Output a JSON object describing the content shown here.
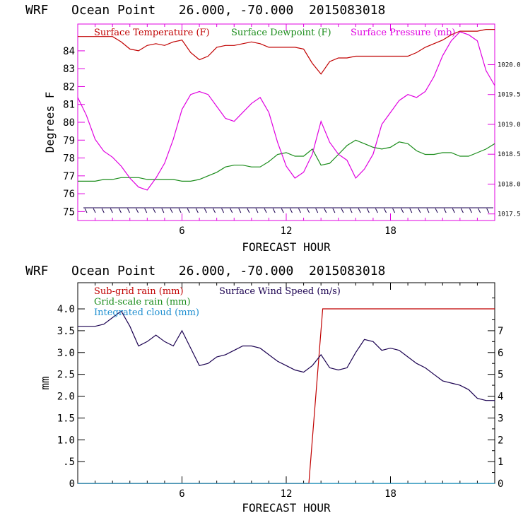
{
  "colors": {
    "red": "#c00000",
    "green": "#1a8c1a",
    "magenta": "#e000e0",
    "navy": "#1a0050",
    "blue": "#1f8fd0",
    "frame_top": "#e000e0",
    "frame_bottom": "#000000"
  },
  "chart_data": [
    {
      "type": "line",
      "title": "WRF   Ocean Point   26.000, -70.000  2015083018",
      "xlabel": "FORECAST HOUR",
      "ylabel": "Degrees F",
      "xlim": [
        0,
        24
      ],
      "ylim": [
        74.5,
        85.5
      ],
      "xticks": [
        6,
        12,
        18
      ],
      "yticks": [
        75,
        76,
        77,
        78,
        79,
        80,
        81,
        82,
        83,
        84
      ],
      "right_axis": {
        "label": "Surface Pressure (mb)",
        "ticks": [
          "1017.5",
          "1018.0",
          "1018.5",
          "1019.0",
          "1019.5",
          "1020.0"
        ],
        "tick_values": [
          1017.5,
          1018.0,
          1018.5,
          1019.0,
          1019.5,
          1020.0
        ],
        "ylim": [
          1017.39,
          1020.68
        ]
      },
      "legend": [
        "Surface Temperature (F)",
        "Surface Dewpoint (F)",
        "Surface Pressure (mb)"
      ],
      "series": [
        {
          "name": "Surface Temperature (F)",
          "axis": "left",
          "x": [
            0,
            0.5,
            1,
            1.5,
            2,
            2.5,
            3,
            3.5,
            4,
            4.5,
            5,
            5.5,
            6,
            6.5,
            7,
            7.5,
            8,
            8.5,
            9,
            9.5,
            10,
            10.5,
            11,
            11.5,
            12,
            12.5,
            13,
            13.5,
            14,
            14.5,
            15,
            15.5,
            16,
            16.5,
            17,
            17.5,
            18,
            18.5,
            19,
            19.5,
            20,
            20.5,
            21,
            21.5,
            22,
            22.5,
            23,
            23.5,
            24
          ],
          "values": [
            84.8,
            84.8,
            84.8,
            84.8,
            84.8,
            84.5,
            84.1,
            84.0,
            84.3,
            84.4,
            84.3,
            84.5,
            84.6,
            83.9,
            83.5,
            83.7,
            84.2,
            84.3,
            84.3,
            84.4,
            84.5,
            84.4,
            84.2,
            84.2,
            84.2,
            84.2,
            84.1,
            83.3,
            82.7,
            83.4,
            83.6,
            83.6,
            83.7,
            83.7,
            83.7,
            83.7,
            83.7,
            83.7,
            83.7,
            83.9,
            84.2,
            84.4,
            84.6,
            84.9,
            85.1,
            85.1,
            85.1,
            85.2,
            85.2
          ]
        },
        {
          "name": "Surface Dewpoint (F)",
          "axis": "left",
          "x": [
            0,
            0.5,
            1,
            1.5,
            2,
            2.5,
            3,
            3.5,
            4,
            4.5,
            5,
            5.5,
            6,
            6.5,
            7,
            7.5,
            8,
            8.5,
            9,
            9.5,
            10,
            10.5,
            11,
            11.5,
            12,
            12.5,
            13,
            13.5,
            14,
            14.5,
            15,
            15.5,
            16,
            16.5,
            17,
            17.5,
            18,
            18.5,
            19,
            19.5,
            20,
            20.5,
            21,
            21.5,
            22,
            22.5,
            23,
            23.5,
            24
          ],
          "values": [
            76.7,
            76.7,
            76.7,
            76.8,
            76.8,
            76.9,
            76.9,
            76.9,
            76.8,
            76.8,
            76.8,
            76.8,
            76.7,
            76.7,
            76.8,
            77.0,
            77.2,
            77.5,
            77.6,
            77.6,
            77.5,
            77.5,
            77.8,
            78.2,
            78.3,
            78.1,
            78.1,
            78.5,
            77.6,
            77.7,
            78.2,
            78.7,
            79.0,
            78.8,
            78.6,
            78.5,
            78.6,
            78.9,
            78.8,
            78.4,
            78.2,
            78.2,
            78.3,
            78.3,
            78.1,
            78.1,
            78.3,
            78.5,
            78.8
          ]
        },
        {
          "name": "Surface Pressure (mb)",
          "axis": "right",
          "x": [
            0,
            0.5,
            1,
            1.5,
            2,
            2.5,
            3,
            3.5,
            4,
            4.5,
            5,
            5.5,
            6,
            6.5,
            7,
            7.5,
            8,
            8.5,
            9,
            9.5,
            10,
            10.5,
            11,
            11.5,
            12,
            12.5,
            13,
            13.5,
            14,
            14.5,
            15,
            15.5,
            16,
            16.5,
            17,
            17.5,
            18,
            18.5,
            19,
            19.5,
            20,
            20.5,
            21,
            21.5,
            22,
            22.5,
            23,
            23.5,
            24
          ],
          "values": [
            1019.45,
            1019.15,
            1018.75,
            1018.55,
            1018.45,
            1018.3,
            1018.1,
            1017.95,
            1017.9,
            1018.1,
            1018.35,
            1018.75,
            1019.25,
            1019.5,
            1019.55,
            1019.5,
            1019.3,
            1019.1,
            1019.05,
            1019.2,
            1019.35,
            1019.45,
            1019.2,
            1018.7,
            1018.3,
            1018.1,
            1018.2,
            1018.5,
            1019.05,
            1018.7,
            1018.5,
            1018.4,
            1018.1,
            1018.25,
            1018.5,
            1019.0,
            1019.2,
            1019.4,
            1019.5,
            1019.45,
            1019.55,
            1019.8,
            1020.15,
            1020.4,
            1020.55,
            1020.5,
            1020.4,
            1019.9,
            1019.65
          ]
        }
      ]
    },
    {
      "type": "line",
      "title": "WRF   Ocean Point   26.000, -70.000  2015083018",
      "xlabel": "FORECAST HOUR",
      "ylabel": "mm",
      "xlim": [
        0,
        24
      ],
      "ylim": [
        0,
        4.6
      ],
      "xticks": [
        6,
        12,
        18
      ],
      "yticks": [
        0,
        0.5,
        1.0,
        1.5,
        2.0,
        2.5,
        3.0,
        3.5,
        4.0
      ],
      "ytick_labels": [
        "0",
        ".5",
        "1.0",
        "1.5",
        "2.0",
        "2.5",
        "3.0",
        "3.5",
        "4.0"
      ],
      "right_axis": {
        "label": "Surface Wind Speed (m/s)",
        "ticks": [
          "0",
          "1",
          "2",
          "3",
          "4",
          "5",
          "6",
          "7"
        ],
        "tick_values": [
          0,
          1,
          2,
          3,
          4,
          5,
          6,
          7
        ],
        "ylim": [
          0,
          9.2
        ]
      },
      "legend": [
        "Sub-grid rain (mm)",
        "Grid-scale rain (mm)",
        "Integrated cloud (mm)",
        "Surface Wind Speed (m/s)"
      ],
      "series": [
        {
          "name": "Sub-grid rain (mm)",
          "axis": "left",
          "x": [
            0,
            13.3,
            14.1,
            24
          ],
          "values": [
            0,
            0,
            4.0,
            4.0
          ]
        },
        {
          "name": "Grid-scale rain (mm)",
          "axis": "left",
          "x": [
            0,
            24
          ],
          "values": [
            0,
            0
          ]
        },
        {
          "name": "Integrated cloud (mm)",
          "axis": "left",
          "x": [
            0,
            24
          ],
          "values": [
            0,
            0
          ]
        },
        {
          "name": "Surface Wind Speed (m/s)",
          "axis": "right",
          "x": [
            0,
            0.5,
            1,
            1.5,
            2,
            2.5,
            3,
            3.5,
            4,
            4.5,
            5,
            5.5,
            6,
            6.5,
            7,
            7.5,
            8,
            8.5,
            9,
            9.5,
            10,
            10.5,
            11,
            11.5,
            12,
            12.5,
            13,
            13.5,
            14,
            14.5,
            15,
            15.5,
            16,
            16.5,
            17,
            17.5,
            18,
            18.5,
            19,
            19.5,
            20,
            20.5,
            21,
            21.5,
            22,
            22.5,
            23,
            23.5,
            24
          ],
          "values": [
            7.2,
            7.2,
            7.2,
            7.3,
            7.6,
            7.9,
            7.2,
            6.3,
            6.5,
            6.8,
            6.5,
            6.3,
            7.0,
            6.2,
            5.4,
            5.5,
            5.8,
            5.9,
            6.1,
            6.3,
            6.3,
            6.2,
            5.9,
            5.6,
            5.4,
            5.2,
            5.1,
            5.4,
            5.9,
            5.3,
            5.2,
            5.3,
            6.0,
            6.6,
            6.5,
            6.1,
            6.2,
            6.1,
            5.8,
            5.5,
            5.3,
            5.0,
            4.7,
            4.6,
            4.5,
            4.3,
            3.9,
            3.8,
            3.8
          ]
        }
      ]
    }
  ]
}
